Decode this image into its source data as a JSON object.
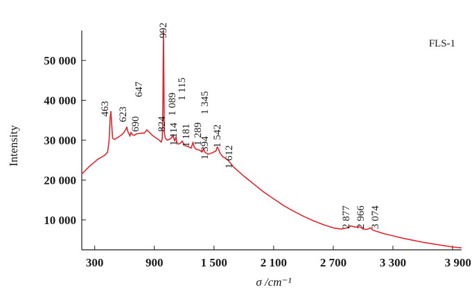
{
  "chart_data": {
    "type": "line",
    "title": "",
    "sample_label": "FLS-1",
    "xlabel": "σ /cm⁻¹",
    "ylabel": "Intensity",
    "xlim": [
      170,
      3990
    ],
    "ylim": [
      2500,
      57500
    ],
    "x_ticks": [
      {
        "value": 300,
        "label": "300"
      },
      {
        "value": 900,
        "label": "900"
      },
      {
        "value": 1500,
        "label": "1 500"
      },
      {
        "value": 2100,
        "label": "2 100"
      },
      {
        "value": 2700,
        "label": "2 700"
      },
      {
        "value": 3300,
        "label": "3 300"
      },
      {
        "value": 3900,
        "label": "3 900"
      }
    ],
    "y_ticks": [
      {
        "value": 10000,
        "label": "10 000"
      },
      {
        "value": 20000,
        "label": "20 000"
      },
      {
        "value": 30000,
        "label": "30 000"
      },
      {
        "value": 40000,
        "label": "40 000"
      },
      {
        "value": 50000,
        "label": "50 000"
      }
    ],
    "grid": false,
    "line_color": "#e0262d",
    "series": [
      {
        "name": "",
        "x": [
          170,
          250,
          330,
          400,
          430,
          445,
          455,
          463,
          470,
          480,
          500,
          540,
          580,
          600,
          615,
          623,
          632,
          640,
          647,
          655,
          665,
          680,
          690,
          700,
          720,
          760,
          800,
          824,
          850,
          880,
          920,
          950,
          970,
          980,
          986,
          990,
          992,
          995,
          1000,
          1010,
          1030,
          1060,
          1080,
          1089,
          1095,
          1105,
          1114,
          1118,
          1125,
          1140,
          1160,
          1181,
          1190,
          1210,
          1240,
          1270,
          1289,
          1300,
          1320,
          1345,
          1360,
          1380,
          1394,
          1410,
          1440,
          1480,
          1520,
          1532,
          1542,
          1560,
          1590,
          1612,
          1640,
          1700,
          1800,
          1900,
          2000,
          2100,
          2200,
          2300,
          2400,
          2500,
          2600,
          2700,
          2780,
          2840,
          2877,
          2920,
          2966,
          3000,
          3040,
          3074,
          3100,
          3200,
          3300,
          3400,
          3500,
          3600,
          3700,
          3800,
          3900,
          3990
        ],
        "y": [
          21500,
          23500,
          25200,
          26200,
          27000,
          30000,
          35500,
          37200,
          34500,
          30500,
          30200,
          30800,
          31500,
          32200,
          32800,
          33300,
          32300,
          31800,
          31500,
          31000,
          32000,
          31300,
          31300,
          31200,
          31600,
          31700,
          31800,
          32600,
          32000,
          31200,
          30500,
          30000,
          29500,
          30500,
          40000,
          52000,
          57500,
          47000,
          32000,
          30500,
          30000,
          30300,
          30800,
          31400,
          30500,
          29800,
          30500,
          30800,
          29500,
          29000,
          29200,
          29800,
          29300,
          28600,
          28400,
          28000,
          29500,
          28300,
          27700,
          27600,
          27400,
          27000,
          27800,
          26900,
          26500,
          26800,
          27300,
          28300,
          28000,
          26800,
          25800,
          25500,
          25000,
          23200,
          21000,
          19000,
          17000,
          15300,
          13600,
          12200,
          10900,
          9800,
          8800,
          8000,
          7700,
          8000,
          8500,
          8200,
          8300,
          7700,
          7600,
          8000,
          7400,
          6600,
          6000,
          5400,
          4900,
          4400,
          4000,
          3600,
          3200,
          3000
        ]
      }
    ],
    "peak_labels": [
      {
        "x": 463,
        "y": 37200,
        "label": "463"
      },
      {
        "x": 623,
        "y": 33300,
        "label": "623"
      },
      {
        "x": 647,
        "y": 31500,
        "label": "647"
      },
      {
        "x": 690,
        "y": 31300,
        "label": "690"
      },
      {
        "x": 824,
        "y": 32600,
        "label": "824"
      },
      {
        "x": 992,
        "y": 57500,
        "label": "992"
      },
      {
        "x": 1089,
        "y": 31400,
        "label": "1 089"
      },
      {
        "x": 1114,
        "y": 30500,
        "label": "1 114"
      },
      {
        "x": 1115,
        "y": 30500,
        "label": "1 115"
      },
      {
        "x": 1181,
        "y": 29800,
        "label": "1 181"
      },
      {
        "x": 1289,
        "y": 29500,
        "label": "1 289"
      },
      {
        "x": 1345,
        "y": 27600,
        "label": "1 345"
      },
      {
        "x": 1394,
        "y": 27800,
        "label": "1 394"
      },
      {
        "x": 1542,
        "y": 28000,
        "label": "1 542"
      },
      {
        "x": 1612,
        "y": 25500,
        "label": "1 612"
      },
      {
        "x": 2877,
        "y": 8500,
        "label": "2 877"
      },
      {
        "x": 2966,
        "y": 8300,
        "label": "2 966"
      },
      {
        "x": 3074,
        "y": 8000,
        "label": "3 074"
      }
    ]
  }
}
